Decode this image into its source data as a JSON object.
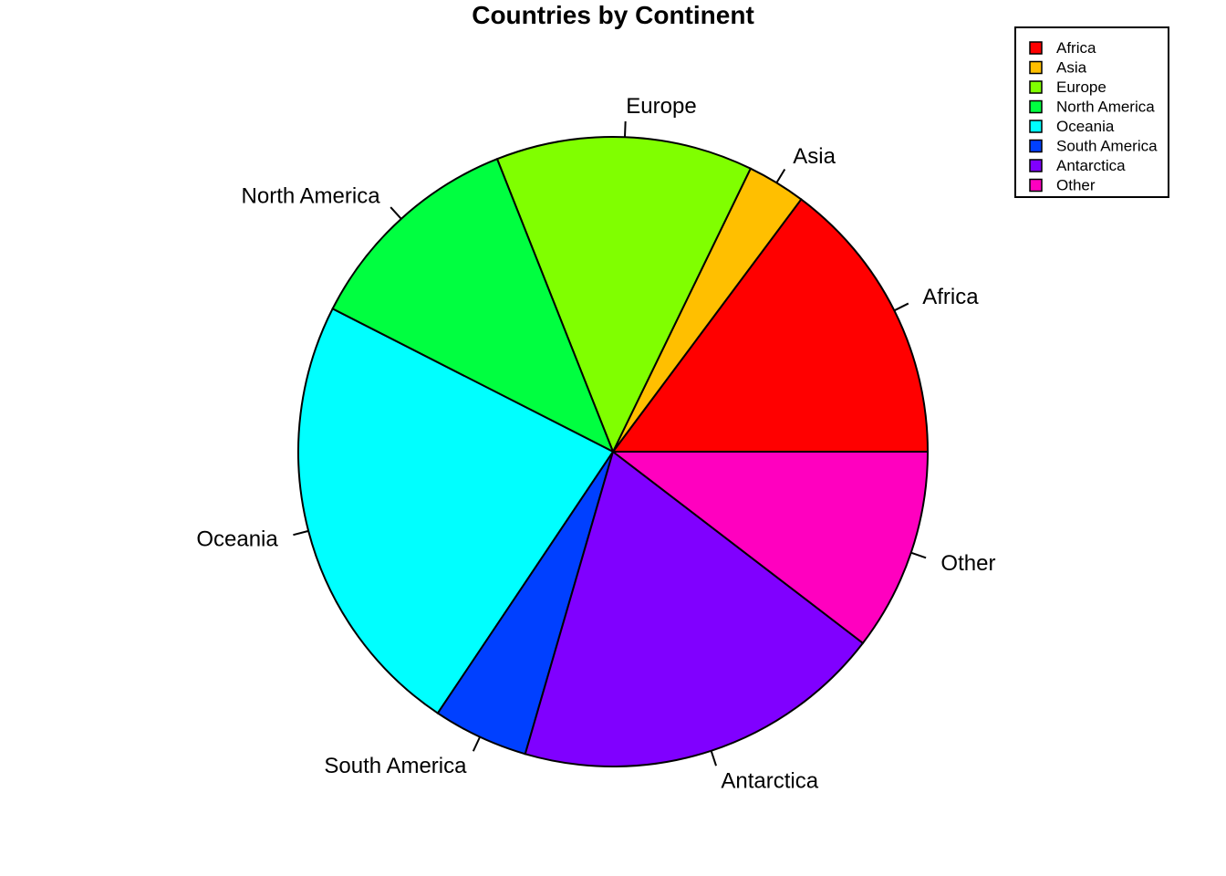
{
  "chart_data": {
    "type": "pie",
    "title": "Countries by Continent",
    "categories": [
      "Africa",
      "Asia",
      "Europe",
      "North America",
      "Oceania",
      "South America",
      "Antarctica",
      "Other"
    ],
    "values": [
      14.8,
      3.0,
      13.2,
      11.5,
      23.1,
      4.9,
      19.1,
      10.4
    ],
    "colors": [
      "#FF0000",
      "#FFBF00",
      "#80FF00",
      "#00FF40",
      "#00FFFF",
      "#0040FF",
      "#8000FF",
      "#FF00BF"
    ],
    "start_angle_deg": 0,
    "direction": "counterclockwise",
    "legend": {
      "position": "top-right",
      "entries": [
        "Africa",
        "Asia",
        "Europe",
        "North America",
        "Oceania",
        "South America",
        "Antarctica",
        "Other"
      ]
    }
  }
}
